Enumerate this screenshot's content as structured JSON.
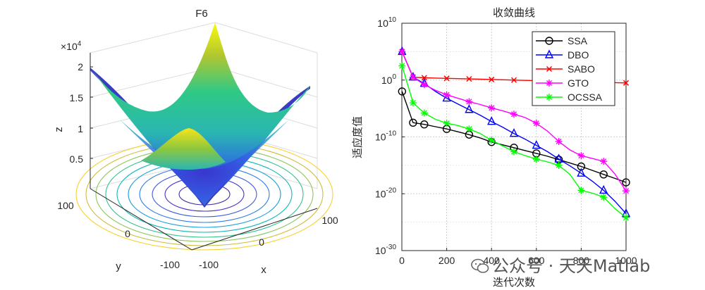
{
  "left_panel": {
    "title": "F6",
    "multiplier": "×10",
    "multiplier_exp": "4",
    "z_ticks": [
      "0.5",
      "1",
      "1.5",
      "2"
    ],
    "z_label": "z",
    "x_ticks": [
      "-100",
      "0",
      "100"
    ],
    "x_label": "x",
    "y_ticks": [
      "-100",
      "0",
      "100"
    ],
    "y_label": "y",
    "colors": {
      "low": "#3e26a8",
      "mid": "#2ab7b0",
      "high": "#f9fb0e"
    }
  },
  "chart_data": {
    "type": "line",
    "title": "收敛曲线",
    "xlabel": "迭代次数",
    "ylabel": "适应度值",
    "xlim": [
      0,
      1000
    ],
    "ylim_log10": [
      -30,
      10
    ],
    "x_ticks": [
      "0",
      "200",
      "400",
      "600",
      "800",
      "1000"
    ],
    "y_ticks": [
      {
        "base": "10",
        "exp": "10"
      },
      {
        "base": "10",
        "exp": "0"
      },
      {
        "base": "10",
        "exp": "-10"
      },
      {
        "base": "10",
        "exp": "-20"
      },
      {
        "base": "10",
        "exp": "-30"
      }
    ],
    "grid": true,
    "legend_position": "top-right",
    "series": [
      {
        "name": "SSA",
        "color": "#000000",
        "marker": "circle",
        "x": [
          1,
          50,
          100,
          150,
          200,
          250,
          300,
          350,
          400,
          450,
          500,
          550,
          600,
          650,
          700,
          750,
          800,
          850,
          900,
          950,
          1000
        ],
        "log10_values": [
          -2,
          -7.5,
          -7.8,
          -8.2,
          -8.6,
          -9.1,
          -9.6,
          -10.2,
          -10.9,
          -11.4,
          -11.9,
          -12.4,
          -12.9,
          -13.4,
          -14.0,
          -14.6,
          -15.2,
          -15.9,
          -16.6,
          -17.3,
          -18.0
        ]
      },
      {
        "name": "DBO",
        "color": "#0000ff",
        "marker": "triangle",
        "x": [
          1,
          50,
          100,
          150,
          200,
          250,
          300,
          350,
          400,
          450,
          500,
          550,
          600,
          650,
          700,
          750,
          800,
          850,
          900,
          950,
          1000
        ],
        "log10_values": [
          5,
          0.5,
          -0.6,
          -2.0,
          -3.2,
          -4.2,
          -5.2,
          -6.2,
          -7.3,
          -8.3,
          -9.4,
          -10.4,
          -11.5,
          -12.6,
          -13.9,
          -15.1,
          -16.4,
          -17.8,
          -19.4,
          -21.3,
          -23.5
        ]
      },
      {
        "name": "SABO",
        "color": "#ff0000",
        "marker": "cross",
        "x": [
          1,
          50,
          100,
          150,
          200,
          250,
          300,
          350,
          400,
          450,
          500,
          550,
          600,
          650,
          700,
          750,
          800,
          850,
          900,
          950,
          1000
        ],
        "log10_values": [
          5,
          0.5,
          0.4,
          0.35,
          0.3,
          0.25,
          0.2,
          0.15,
          0.1,
          0.05,
          0.0,
          -0.05,
          -0.1,
          -0.15,
          -0.2,
          -0.25,
          -0.3,
          -0.35,
          -0.4,
          -0.45,
          -0.5
        ]
      },
      {
        "name": "GTO",
        "color": "#ff00ff",
        "marker": "star",
        "x": [
          1,
          50,
          100,
          150,
          200,
          250,
          300,
          350,
          400,
          450,
          500,
          550,
          600,
          650,
          700,
          750,
          800,
          850,
          900,
          950,
          1000
        ],
        "log10_values": [
          5,
          0.5,
          -0.8,
          -1.8,
          -2.6,
          -3.2,
          -3.8,
          -4.3,
          -4.9,
          -5.4,
          -6.0,
          -6.6,
          -7.6,
          -9.0,
          -10.8,
          -12.3,
          -13.3,
          -13.8,
          -14.3,
          -16.5,
          -19.5
        ]
      },
      {
        "name": "OCSSA",
        "color": "#00ff00",
        "marker": "star",
        "x": [
          1,
          50,
          100,
          150,
          200,
          250,
          300,
          350,
          400,
          450,
          500,
          550,
          600,
          650,
          700,
          750,
          800,
          850,
          900,
          950,
          1000
        ],
        "log10_values": [
          2.5,
          -4.0,
          -5.8,
          -6.9,
          -7.6,
          -8.0,
          -8.6,
          -9.4,
          -10.6,
          -11.6,
          -12.6,
          -13.3,
          -13.9,
          -14.4,
          -15.0,
          -16.6,
          -19.4,
          -19.9,
          -20.6,
          -22.6,
          -24.2
        ]
      }
    ]
  },
  "watermark": {
    "text": "公众号 · 天天Matlab"
  }
}
